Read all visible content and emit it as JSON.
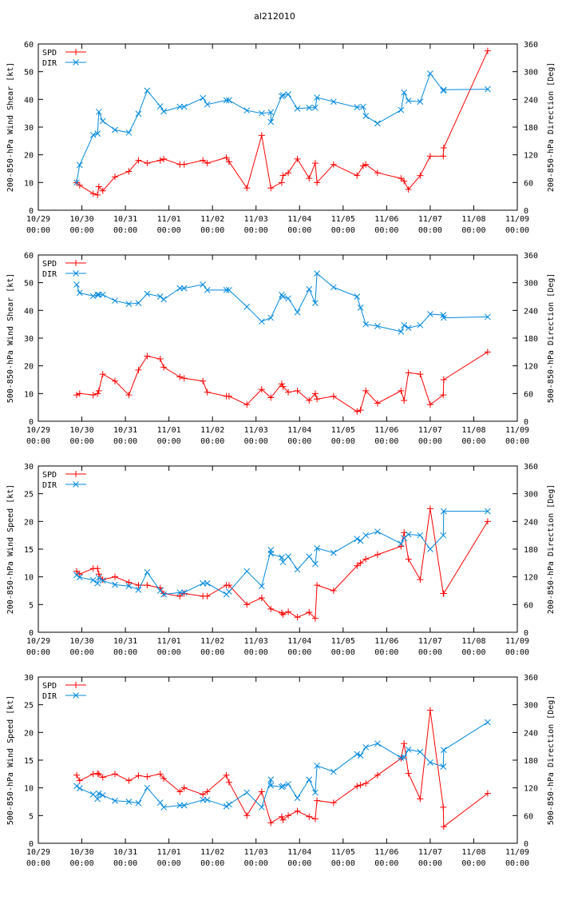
{
  "title": "al212010",
  "colors": {
    "spd": "#ff0000",
    "dir": "#0088dd",
    "title": "#0000ff",
    "axis": "#000000"
  },
  "x_ticks": [
    {
      "day": 0,
      "date": "10/29",
      "time": "00:00"
    },
    {
      "day": 1,
      "date": "10/30",
      "time": "00:00"
    },
    {
      "day": 2,
      "date": "10/31",
      "time": "00:00"
    },
    {
      "day": 3,
      "date": "11/01",
      "time": "00:00"
    },
    {
      "day": 4,
      "date": "11/02",
      "time": "00:00"
    },
    {
      "day": 5,
      "date": "11/03",
      "time": "00:00"
    },
    {
      "day": 6,
      "date": "11/04",
      "time": "00:00"
    },
    {
      "day": 7,
      "date": "11/05",
      "time": "00:00"
    },
    {
      "day": 8,
      "date": "11/06",
      "time": "00:00"
    },
    {
      "day": 9,
      "date": "11/07",
      "time": "00:00"
    },
    {
      "day": 10,
      "date": "11/08",
      "time": "00:00"
    },
    {
      "day": 11,
      "date": "11/09",
      "time": "00:00"
    }
  ],
  "chart_data": [
    {
      "type": "line",
      "ylabel_left": "200-850-hPa Wind Shear [kt]",
      "ylabel_right": "200-850-hPa Direction [Deg]",
      "ylim_left": [
        0,
        60
      ],
      "yticks_left": [
        0,
        10,
        20,
        30,
        40,
        50,
        60
      ],
      "ylim_right": [
        0,
        360
      ],
      "yticks_right": [
        0,
        60,
        120,
        180,
        240,
        300,
        360
      ],
      "xlim": [
        0,
        11
      ],
      "legend_position": "top-left",
      "series": [
        {
          "name": "SPD",
          "axis": "left",
          "x": [
            0.88,
            0.95,
            1.26,
            1.36,
            1.39,
            1.48,
            1.76,
            2.08,
            2.3,
            2.5,
            2.8,
            2.88,
            3.25,
            3.35,
            3.78,
            3.88,
            4.32,
            4.38,
            4.79,
            5.13,
            5.34,
            5.59,
            5.62,
            5.74,
            5.95,
            6.22,
            6.36,
            6.4,
            6.78,
            7.32,
            7.46,
            7.52,
            7.79,
            8.33,
            8.4,
            8.5,
            8.77,
            9.0,
            9.3,
            9.31,
            10.32
          ],
          "values": [
            10,
            9,
            6,
            5.5,
            8.5,
            7,
            12,
            14,
            18,
            17,
            18,
            18.5,
            16.5,
            16.5,
            18,
            17,
            19,
            17.5,
            8,
            27,
            8,
            10,
            12.5,
            13.5,
            18.5,
            11.5,
            17,
            10,
            16.5,
            12.5,
            16,
            16.5,
            13.5,
            11.5,
            10.5,
            7.5,
            12.5,
            19.5,
            19.5,
            22.5,
            57.5
          ]
        },
        {
          "name": "DIR",
          "axis": "right",
          "x": [
            0.88,
            0.95,
            1.26,
            1.36,
            1.39,
            1.48,
            1.76,
            2.08,
            2.3,
            2.5,
            2.8,
            2.88,
            3.25,
            3.35,
            3.78,
            3.88,
            4.32,
            4.38,
            4.79,
            5.13,
            5.34,
            5.34,
            5.59,
            5.62,
            5.74,
            5.95,
            6.22,
            6.36,
            6.4,
            6.78,
            7.32,
            7.46,
            7.52,
            7.79,
            8.33,
            8.4,
            8.5,
            8.77,
            9.0,
            9.3,
            9.31,
            10.32
          ],
          "values": [
            60,
            98,
            163,
            166,
            213,
            193,
            174,
            168,
            209,
            259,
            225,
            214,
            224,
            224,
            243,
            229,
            238,
            238,
            216,
            210,
            212,
            191,
            247,
            249,
            251,
            220,
            222,
            222,
            244,
            235,
            223,
            224,
            204,
            188,
            217,
            255,
            237,
            235,
            296,
            259,
            261,
            262
          ]
        }
      ]
    },
    {
      "type": "line",
      "ylabel_left": "500-850-hPa Wind Shear [kt]",
      "ylabel_right": "500-850-hPa Direction [Deg]",
      "ylim_left": [
        0,
        60
      ],
      "yticks_left": [
        0,
        10,
        20,
        30,
        40,
        50,
        60
      ],
      "ylim_right": [
        0,
        360
      ],
      "yticks_right": [
        0,
        60,
        120,
        180,
        240,
        300,
        360
      ],
      "xlim": [
        0,
        11
      ],
      "legend_position": "top-left",
      "series": [
        {
          "name": "SPD",
          "axis": "left",
          "x": [
            0.88,
            0.95,
            1.26,
            1.36,
            1.39,
            1.48,
            1.76,
            2.08,
            2.3,
            2.5,
            2.8,
            2.88,
            3.25,
            3.35,
            3.78,
            3.88,
            4.32,
            4.38,
            4.79,
            5.13,
            5.34,
            5.59,
            5.62,
            5.74,
            5.95,
            6.22,
            6.36,
            6.4,
            6.78,
            7.32,
            7.4,
            7.52,
            7.79,
            8.33,
            8.4,
            8.5,
            8.77,
            9.0,
            9.3,
            9.31,
            10.32
          ],
          "values": [
            9.5,
            10,
            9.5,
            10,
            11,
            17,
            14.5,
            9.5,
            18.5,
            23.5,
            22.5,
            19.5,
            16,
            15.5,
            14.5,
            10.5,
            9,
            9,
            6,
            11.5,
            8.5,
            13.5,
            12.5,
            10.5,
            11,
            7.5,
            10,
            8,
            9,
            3.5,
            4,
            11,
            6.5,
            11,
            7.5,
            17.5,
            17,
            6,
            9.5,
            15,
            25
          ]
        },
        {
          "name": "DIR",
          "axis": "right",
          "x": [
            0.88,
            0.95,
            1.26,
            1.36,
            1.39,
            1.48,
            1.76,
            2.08,
            2.3,
            2.5,
            2.8,
            2.88,
            3.25,
            3.35,
            3.78,
            3.88,
            4.32,
            4.38,
            4.79,
            5.13,
            5.34,
            5.59,
            5.62,
            5.74,
            5.95,
            6.22,
            6.36,
            6.4,
            6.78,
            7.32,
            7.4,
            7.52,
            7.79,
            8.33,
            8.4,
            8.5,
            8.77,
            9.0,
            9.3,
            9.31,
            10.32
          ],
          "values": [
            296,
            278,
            271,
            274,
            274,
            274,
            261,
            254,
            256,
            276,
            270,
            264,
            288,
            288,
            296,
            284,
            284,
            284,
            248,
            216,
            224,
            274,
            270,
            266,
            236,
            286,
            256,
            320,
            290,
            270,
            246,
            210,
            206,
            194,
            208,
            202,
            208,
            232,
            230,
            224,
            226
          ]
        }
      ]
    },
    {
      "type": "line",
      "ylabel_left": "200-850-hPa Wind Speed [kt]",
      "ylabel_right": "200-850-hPa Direction [Deg]",
      "ylim_left": [
        0,
        30
      ],
      "yticks_left": [
        0,
        5,
        10,
        15,
        20,
        25,
        30
      ],
      "ylim_right": [
        0,
        360
      ],
      "yticks_right": [
        0,
        60,
        120,
        180,
        240,
        300,
        360
      ],
      "xlim": [
        0,
        11
      ],
      "legend_position": "top-left",
      "series": [
        {
          "name": "SPD",
          "axis": "left",
          "x": [
            0.88,
            0.95,
            1.26,
            1.36,
            1.39,
            1.48,
            1.76,
            2.08,
            2.3,
            2.5,
            2.8,
            2.88,
            3.25,
            3.35,
            3.78,
            3.88,
            4.32,
            4.38,
            4.79,
            5.13,
            5.34,
            5.59,
            5.62,
            5.74,
            5.95,
            6.22,
            6.36,
            6.4,
            6.78,
            7.32,
            7.4,
            7.52,
            7.79,
            8.33,
            8.4,
            8.5,
            8.77,
            9.0,
            9.3,
            9.31,
            10.32
          ],
          "values": [
            11,
            10.5,
            11.5,
            11.5,
            10.5,
            9.5,
            10,
            9,
            8.5,
            8.5,
            8,
            7,
            6.5,
            7,
            6.5,
            6.5,
            8.5,
            8.5,
            5,
            6.2,
            4.2,
            3.5,
            3.2,
            3.7,
            2.7,
            3.6,
            2.5,
            8.5,
            7.5,
            12,
            12.5,
            13.2,
            14,
            15.5,
            18,
            13.2,
            9.5,
            22.3,
            7,
            7,
            20
          ]
        },
        {
          "name": "DIR",
          "axis": "right",
          "x": [
            0.88,
            0.95,
            1.26,
            1.36,
            1.39,
            1.48,
            1.76,
            2.08,
            2.3,
            2.5,
            2.8,
            2.88,
            3.25,
            3.35,
            3.78,
            3.88,
            4.32,
            4.38,
            4.79,
            5.13,
            5.34,
            5.34,
            5.59,
            5.62,
            5.74,
            5.95,
            6.22,
            6.36,
            6.4,
            6.78,
            7.32,
            7.4,
            7.52,
            7.79,
            8.33,
            8.4,
            8.5,
            8.77,
            9.0,
            9.3,
            9.31,
            10.32
          ],
          "values": [
            124,
            119,
            113,
            106,
            118,
            112,
            103,
            100,
            92,
            130,
            90,
            82,
            86,
            86,
            106,
            106,
            82,
            88,
            132,
            100,
            178,
            170,
            162,
            152,
            164,
            136,
            164,
            148,
            182,
            172,
            202,
            198,
            210,
            218,
            192,
            204,
            212,
            210,
            180,
            210,
            262,
            262
          ]
        }
      ]
    },
    {
      "type": "line",
      "ylabel_left": "500-850-hPa Wind Speed [kt]",
      "ylabel_right": "500-850-hPa Direction [Deg]",
      "ylim_left": [
        0,
        30
      ],
      "yticks_left": [
        0,
        5,
        10,
        15,
        20,
        25,
        30
      ],
      "ylim_right": [
        0,
        360
      ],
      "yticks_right": [
        0,
        60,
        120,
        180,
        240,
        300,
        360
      ],
      "xlim": [
        0,
        11
      ],
      "legend_position": "top-left",
      "series": [
        {
          "name": "SPD",
          "axis": "left",
          "x": [
            0.88,
            0.95,
            1.26,
            1.36,
            1.39,
            1.48,
            1.76,
            2.08,
            2.3,
            2.5,
            2.8,
            2.88,
            3.25,
            3.35,
            3.78,
            3.88,
            4.32,
            4.38,
            4.79,
            5.13,
            5.34,
            5.59,
            5.62,
            5.74,
            5.95,
            6.22,
            6.36,
            6.4,
            6.78,
            7.32,
            7.4,
            7.52,
            7.79,
            8.33,
            8.4,
            8.5,
            8.77,
            9.0,
            9.3,
            9.31,
            10.32
          ],
          "values": [
            12.3,
            11.3,
            12.5,
            12.6,
            12.5,
            11.9,
            12.5,
            11.3,
            12.2,
            12,
            12.5,
            11.7,
            9.3,
            10,
            8.8,
            9.3,
            12.3,
            11,
            5,
            9.3,
            3.7,
            4.8,
            4.2,
            5,
            5.8,
            4.8,
            4.4,
            7.7,
            7.3,
            10.3,
            10.5,
            10.8,
            12.3,
            15.3,
            18,
            12.6,
            8,
            24,
            6.5,
            3,
            9
          ]
        },
        {
          "name": "DIR",
          "axis": "right",
          "x": [
            0.88,
            0.95,
            1.26,
            1.36,
            1.39,
            1.48,
            1.76,
            2.08,
            2.3,
            2.5,
            2.8,
            2.88,
            3.25,
            3.35,
            3.78,
            3.88,
            4.32,
            4.38,
            4.79,
            5.13,
            5.34,
            5.34,
            5.59,
            5.62,
            5.74,
            5.95,
            6.22,
            6.36,
            6.4,
            6.78,
            7.32,
            7.4,
            7.52,
            7.79,
            8.33,
            8.4,
            8.5,
            8.77,
            9.0,
            9.3,
            9.31,
            10.32
          ],
          "values": [
            124,
            119,
            106,
            96,
            108,
            104,
            92,
            90,
            87,
            120,
            88,
            78,
            82,
            82,
            94,
            94,
            80,
            84,
            110,
            78,
            138,
            125,
            122,
            124,
            128,
            98,
            138,
            110,
            168,
            155,
            193,
            190,
            208,
            216,
            185,
            186,
            203,
            198,
            175,
            166,
            202,
            262
          ]
        }
      ]
    }
  ]
}
